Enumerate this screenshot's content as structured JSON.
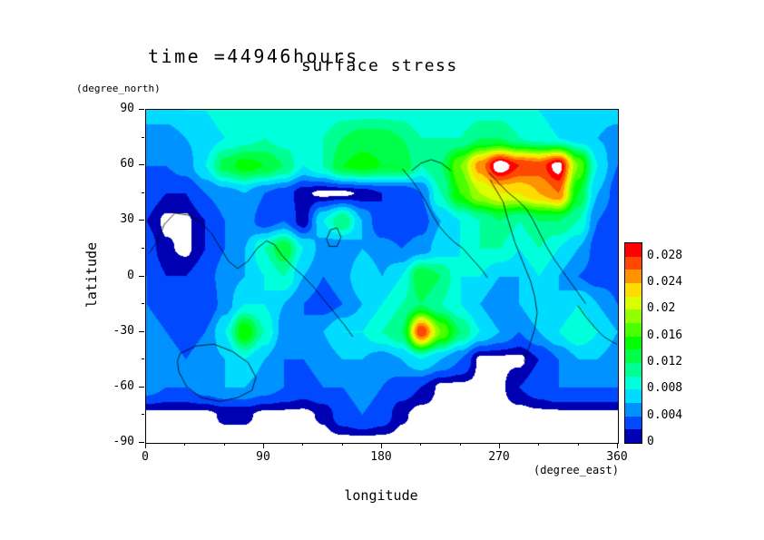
{
  "titles": {
    "time_label": "time =44946hours",
    "plot_title": "surface stress"
  },
  "axes": {
    "x": {
      "label": "longitude",
      "unit": "(degree_east)",
      "ticks": [
        "0",
        "90",
        "180",
        "270",
        "360"
      ],
      "tick_values": [
        0,
        90,
        180,
        270,
        360
      ],
      "minor_tick_values": [
        30,
        60,
        120,
        150,
        210,
        240,
        300,
        330
      ],
      "range": [
        0,
        360
      ]
    },
    "y": {
      "label": "latitude",
      "unit": "(degree_north)",
      "ticks": [
        "90",
        "60",
        "30",
        "0",
        "-30",
        "-60",
        "-90"
      ],
      "tick_values": [
        90,
        60,
        30,
        0,
        -30,
        -60,
        -90
      ],
      "minor_tick_values": [
        75,
        45,
        15,
        -15,
        -45,
        -75
      ],
      "range": [
        -90,
        90
      ]
    }
  },
  "colorbar": {
    "ticks": [
      "0.028",
      "0.024",
      "0.02",
      "0.016",
      "0.012",
      "0.008",
      "0.004",
      "0"
    ],
    "tick_values": [
      0.028,
      0.024,
      0.02,
      0.016,
      0.012,
      0.008,
      0.004,
      0
    ],
    "min": 0,
    "max": 0.03
  },
  "chart_data": {
    "type": "heatmap",
    "title": "surface stress",
    "subtitle": "time =44946hours",
    "xlabel": "longitude (degree_east)",
    "ylabel": "latitude (degree_north)",
    "xlim": [
      0,
      360
    ],
    "ylim": [
      -90,
      90
    ],
    "contour_interval": 0.002,
    "value_scale": 0.001,
    "white_below": 0.0008,
    "white_above": 0.0295,
    "below_color": "#ffffff",
    "above_color": "#ffffff",
    "palette": [
      "#0000b3",
      "#0049ff",
      "#0092ff",
      "#00dbff",
      "#00ffdb",
      "#00ff92",
      "#00ff49",
      "#00ff00",
      "#49ff00",
      "#92ff00",
      "#dbff00",
      "#ffdb00",
      "#ff9200",
      "#ff4900",
      "#ff0000"
    ],
    "lon": [
      0,
      15,
      30,
      45,
      60,
      75,
      90,
      105,
      120,
      135,
      150,
      165,
      180,
      195,
      210,
      225,
      240,
      255,
      270,
      285,
      300,
      315,
      330,
      345,
      360
    ],
    "lat": [
      90,
      75,
      60,
      45,
      30,
      15,
      0,
      -15,
      -30,
      -45,
      -60,
      -75,
      -90
    ],
    "values": [
      [
        7,
        7,
        8,
        8,
        9,
        9,
        9,
        8,
        8,
        8,
        9,
        9,
        9,
        9,
        8,
        8,
        8,
        9,
        9,
        8,
        8,
        7,
        7,
        7,
        7
      ],
      [
        5,
        5,
        6,
        7,
        8,
        9,
        10,
        9,
        9,
        10,
        12,
        13,
        13,
        12,
        10,
        10,
        10,
        12,
        12,
        10,
        9,
        8,
        7,
        6,
        5
      ],
      [
        4,
        4,
        5,
        8,
        13,
        15,
        14,
        12,
        8,
        10,
        14,
        15,
        14,
        14,
        10,
        12,
        18,
        25,
        31,
        28,
        27,
        30.5,
        18,
        8,
        4
      ],
      [
        3,
        2,
        2,
        4,
        5,
        6,
        4,
        3,
        1,
        0.5,
        0.5,
        1,
        2,
        2,
        4,
        10,
        16,
        20,
        22,
        22,
        24,
        26,
        14,
        6,
        3
      ],
      [
        2,
        0.5,
        0.5,
        2,
        4,
        5,
        3,
        4,
        1,
        8,
        12,
        6,
        2,
        2,
        3,
        6,
        8,
        10,
        12,
        10,
        12,
        12,
        10,
        4,
        2
      ],
      [
        3,
        1,
        0.5,
        2,
        4,
        6,
        10,
        14,
        8,
        5,
        4,
        6,
        5,
        4,
        5,
        7,
        8,
        10,
        10,
        8,
        10,
        8,
        6,
        3,
        2
      ],
      [
        4,
        2,
        2,
        3,
        5,
        6,
        8,
        10,
        6,
        4,
        5,
        8,
        6,
        8,
        14,
        12,
        8,
        8,
        6,
        6,
        8,
        6,
        4,
        3,
        3
      ],
      [
        4,
        3,
        2,
        2,
        5,
        8,
        8,
        6,
        4,
        3,
        4,
        6,
        8,
        10,
        12,
        10,
        8,
        6,
        4,
        6,
        8,
        6,
        8,
        6,
        4
      ],
      [
        5,
        4,
        3,
        4,
        8,
        16,
        10,
        5,
        4,
        6,
        8,
        8,
        10,
        12,
        28,
        18,
        12,
        8,
        6,
        4,
        6,
        8,
        10,
        8,
        6
      ],
      [
        6,
        5,
        4,
        5,
        6,
        8,
        6,
        4,
        4,
        5,
        6,
        6,
        5,
        6,
        8,
        6,
        4,
        0.5,
        0.5,
        0.5,
        2,
        4,
        6,
        6,
        5
      ],
      [
        5,
        4,
        4,
        5,
        6,
        6,
        5,
        4,
        3,
        4,
        4,
        5,
        4,
        3,
        2,
        0.5,
        0.5,
        0.5,
        0.5,
        2,
        3,
        4,
        4,
        4,
        4
      ],
      [
        0.5,
        0.5,
        0.5,
        0.5,
        1,
        1,
        0.5,
        0.5,
        0.5,
        1,
        3,
        4,
        3,
        1,
        0.3,
        0.3,
        0.3,
        0.3,
        0.3,
        0.3,
        0.5,
        0.5,
        0.5,
        0.5,
        0.5
      ],
      [
        0.3,
        0.3,
        0.3,
        0.3,
        0.3,
        0.3,
        0.3,
        0.3,
        0.3,
        0.3,
        0.3,
        0.3,
        0.3,
        0.3,
        0.3,
        0.3,
        0.3,
        0.3,
        0.3,
        0.3,
        0.3,
        0.3,
        0.3,
        0.3,
        0.3
      ]
    ],
    "coastlines": [
      [
        [
          2,
          12
        ],
        [
          8,
          18
        ],
        [
          14,
          28
        ],
        [
          22,
          34
        ],
        [
          32,
          33
        ],
        [
          42,
          29
        ],
        [
          50,
          23
        ],
        [
          57,
          15
        ],
        [
          63,
          8
        ],
        [
          70,
          4
        ],
        [
          78,
          8
        ],
        [
          85,
          15
        ],
        [
          92,
          19
        ],
        [
          98,
          17
        ],
        [
          104,
          11
        ],
        [
          112,
          5
        ],
        [
          120,
          0
        ],
        [
          128,
          -6
        ],
        [
          136,
          -13
        ],
        [
          144,
          -20
        ],
        [
          152,
          -27
        ],
        [
          158,
          -33
        ]
      ],
      [
        [
          138,
          20
        ],
        [
          141,
          25
        ],
        [
          146,
          26
        ],
        [
          149,
          21
        ],
        [
          146,
          16
        ],
        [
          140,
          16
        ],
        [
          138,
          20
        ]
      ],
      [
        [
          196,
          58
        ],
        [
          203,
          52
        ],
        [
          209,
          46
        ],
        [
          214,
          40
        ],
        [
          219,
          33
        ],
        [
          224,
          27
        ],
        [
          230,
          22
        ],
        [
          236,
          18
        ],
        [
          242,
          15
        ],
        [
          247,
          11
        ],
        [
          252,
          7
        ],
        [
          257,
          3
        ],
        [
          261,
          -1
        ]
      ],
      [
        [
          263,
          52
        ],
        [
          268,
          46
        ],
        [
          273,
          40
        ],
        [
          276,
          32
        ],
        [
          279,
          25
        ],
        [
          282,
          18
        ],
        [
          286,
          11
        ],
        [
          290,
          4
        ],
        [
          294,
          -3
        ],
        [
          297,
          -11
        ],
        [
          299,
          -20
        ],
        [
          297,
          -29
        ],
        [
          293,
          -38
        ],
        [
          289,
          -46
        ]
      ],
      [
        [
          330,
          -16
        ],
        [
          336,
          -22
        ],
        [
          343,
          -28
        ],
        [
          350,
          -33
        ],
        [
          357,
          -36
        ],
        [
          360,
          -37
        ]
      ],
      [
        [
          26,
          -42
        ],
        [
          38,
          -38
        ],
        [
          52,
          -37
        ],
        [
          66,
          -41
        ],
        [
          78,
          -47
        ],
        [
          84,
          -55
        ],
        [
          81,
          -62
        ],
        [
          70,
          -66
        ],
        [
          56,
          -68
        ],
        [
          42,
          -66
        ],
        [
          31,
          -60
        ],
        [
          25,
          -52
        ],
        [
          24,
          -46
        ],
        [
          26,
          -42
        ]
      ],
      [
        [
          203,
          57
        ],
        [
          210,
          61
        ],
        [
          218,
          63
        ],
        [
          226,
          61
        ],
        [
          233,
          57
        ]
      ],
      [
        [
          262,
          56
        ],
        [
          270,
          50
        ],
        [
          277,
          45
        ],
        [
          284,
          41
        ],
        [
          291,
          36
        ],
        [
          296,
          30
        ],
        [
          301,
          23
        ],
        [
          306,
          16
        ],
        [
          312,
          9
        ],
        [
          318,
          3
        ],
        [
          324,
          -3
        ],
        [
          330,
          -9
        ],
        [
          336,
          -15
        ]
      ]
    ]
  }
}
